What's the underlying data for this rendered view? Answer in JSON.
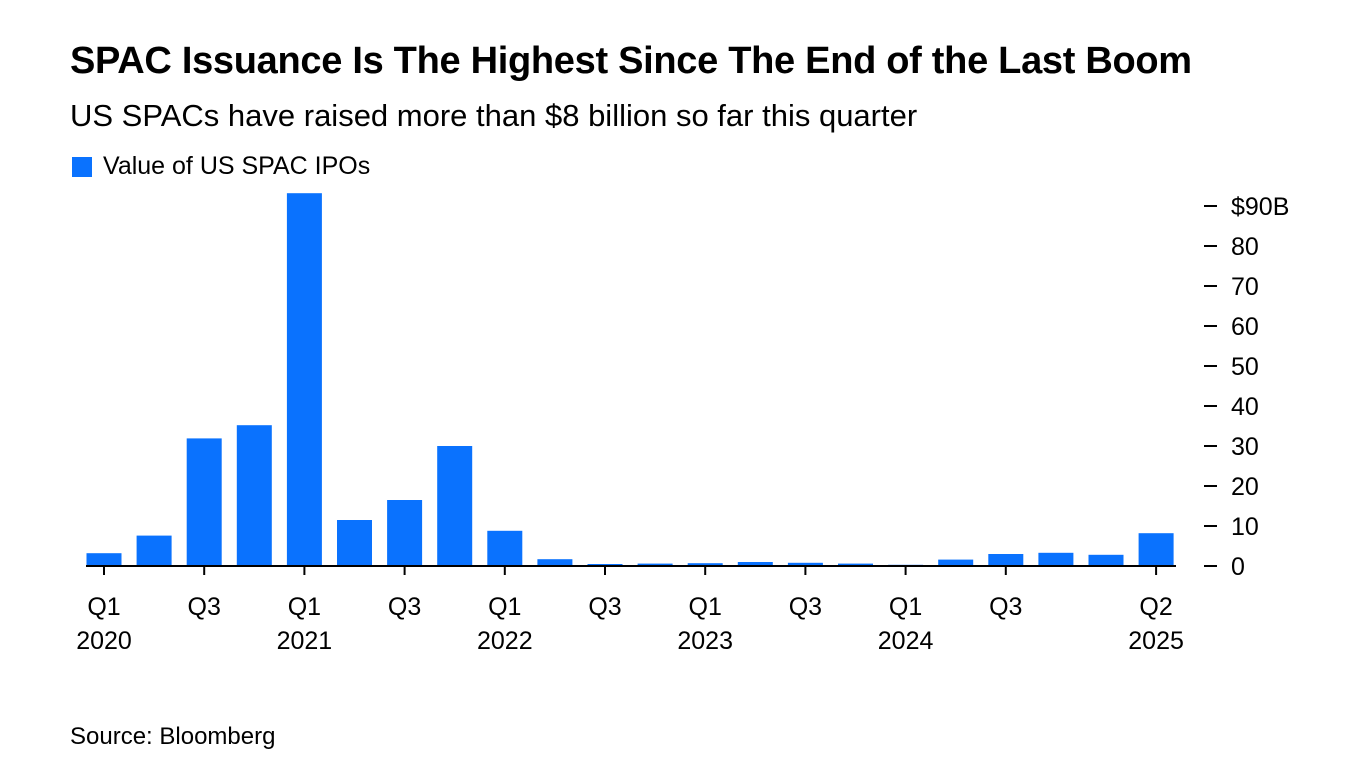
{
  "title": "SPAC Issuance Is The Highest Since The End of the Last Boom",
  "subtitle": "US SPACs have raised more than $8 billion so far this quarter",
  "source": "Source: Bloomberg",
  "colors": {
    "bar": "#0a72fe",
    "axis": "#000000"
  },
  "chart_data": {
    "type": "bar",
    "title": "SPAC Issuance Is The Highest Since The End of the Last Boom",
    "subtitle": "US SPACs have raised more than $8 billion so far this quarter",
    "legend": [
      {
        "name": "Value of US SPAC IPOs",
        "color": "#0a72fe"
      }
    ],
    "legend_position": "top-left",
    "xlabel": "",
    "ylabel": "",
    "ylim": [
      0,
      93
    ],
    "y_ticks": [
      0,
      10,
      20,
      30,
      40,
      50,
      60,
      70,
      80,
      90
    ],
    "y_tick_labels": [
      "0",
      "10",
      "20",
      "30",
      "40",
      "50",
      "60",
      "70",
      "80",
      "$90B"
    ],
    "y_axis_side": "right",
    "grid": false,
    "categories": [
      "Q1 2020",
      "Q2 2020",
      "Q3 2020",
      "Q4 2020",
      "Q1 2021",
      "Q2 2021",
      "Q3 2021",
      "Q4 2021",
      "Q1 2022",
      "Q2 2022",
      "Q3 2022",
      "Q4 2022",
      "Q1 2023",
      "Q2 2023",
      "Q3 2023",
      "Q4 2023",
      "Q1 2024",
      "Q2 2024",
      "Q3 2024",
      "Q4 2024",
      "Q1 2025",
      "Q2 2025"
    ],
    "series": [
      {
        "name": "Value of US SPAC IPOs",
        "values": [
          3.2,
          7.6,
          31.9,
          35.2,
          93.2,
          11.5,
          16.5,
          30.0,
          8.8,
          1.7,
          0.5,
          0.6,
          0.7,
          1.0,
          0.8,
          0.6,
          0.3,
          1.6,
          3.0,
          3.3,
          2.8,
          8.2
        ]
      }
    ],
    "x_ticks": [
      {
        "index": 0,
        "quarter": "Q1",
        "year": "2020"
      },
      {
        "index": 2,
        "quarter": "Q3",
        "year": ""
      },
      {
        "index": 4,
        "quarter": "Q1",
        "year": "2021"
      },
      {
        "index": 6,
        "quarter": "Q3",
        "year": ""
      },
      {
        "index": 8,
        "quarter": "Q1",
        "year": "2022"
      },
      {
        "index": 10,
        "quarter": "Q3",
        "year": ""
      },
      {
        "index": 12,
        "quarter": "Q1",
        "year": "2023"
      },
      {
        "index": 14,
        "quarter": "Q3",
        "year": ""
      },
      {
        "index": 16,
        "quarter": "Q1",
        "year": "2024"
      },
      {
        "index": 18,
        "quarter": "Q3",
        "year": ""
      },
      {
        "index": 21,
        "quarter": "Q2",
        "year": "2025"
      }
    ]
  }
}
